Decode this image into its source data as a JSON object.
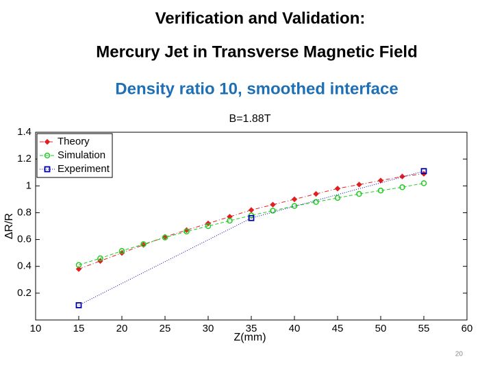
{
  "slide": {
    "title": "Verification and Validation:",
    "subtitle": "Mercury Jet in Transverse Magnetic Field",
    "heading": "Density ratio 10, smoothed interface",
    "page_number": 20
  },
  "chart_data": {
    "type": "line",
    "title": "B=1.88T",
    "xlabel": "Z(mm)",
    "ylabel": "ΔR/R",
    "xlim": [
      10,
      60
    ],
    "xticks": [
      10,
      15,
      20,
      25,
      30,
      35,
      40,
      45,
      50,
      55,
      60
    ],
    "ylim": [
      0,
      1.4
    ],
    "yticks": [
      0.2,
      0.4,
      0.6,
      0.8,
      1,
      1.2,
      1.4
    ],
    "grid": false,
    "legend": "upper-left",
    "series": [
      {
        "name": "Theory",
        "color": "#e02020",
        "marker": "diamond",
        "linestyle": "dashdot",
        "x": [
          15,
          17.5,
          20,
          22.5,
          25,
          27.5,
          30,
          32.5,
          35,
          37.5,
          40,
          42.5,
          45,
          47.5,
          50,
          52.5,
          55
        ],
        "values": [
          0.38,
          0.44,
          0.5,
          0.56,
          0.62,
          0.67,
          0.72,
          0.77,
          0.82,
          0.86,
          0.9,
          0.94,
          0.98,
          1.01,
          1.04,
          1.07,
          1.09
        ]
      },
      {
        "name": "Simulation",
        "color": "#22cc22",
        "marker": "circle",
        "linestyle": "dashed",
        "x": [
          15,
          17.5,
          20,
          22.5,
          25,
          27.5,
          30,
          32.5,
          35,
          37.5,
          40,
          42.5,
          45,
          47.5,
          50,
          52.5,
          55
        ],
        "values": [
          0.41,
          0.46,
          0.515,
          0.565,
          0.615,
          0.66,
          0.7,
          0.74,
          0.78,
          0.815,
          0.85,
          0.88,
          0.91,
          0.94,
          0.965,
          0.99,
          1.02
        ]
      },
      {
        "name": "Experiment",
        "color": "#0000aa",
        "marker": "square",
        "linestyle": "dotted",
        "x": [
          15,
          35,
          55
        ],
        "values": [
          0.11,
          0.76,
          1.11
        ]
      }
    ]
  }
}
